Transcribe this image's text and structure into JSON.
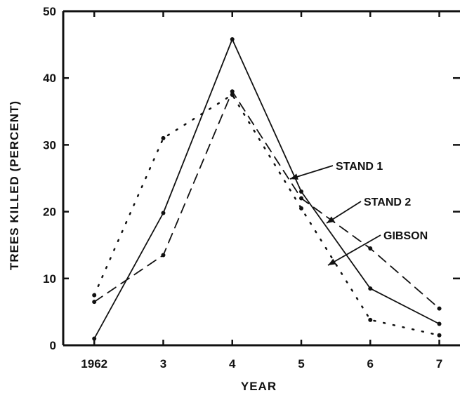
{
  "chart_data": {
    "type": "line",
    "xlabel": "YEAR",
    "ylabel": "TREES KILLED (PERCENT)",
    "x": [
      1962,
      1963,
      1964,
      1965,
      1966,
      1967
    ],
    "x_tick_labels": [
      "1962",
      "3",
      "4",
      "5",
      "6",
      "7"
    ],
    "y_ticks": [
      0,
      10,
      20,
      30,
      40,
      50
    ],
    "xlim": [
      1961.55,
      1967.3
    ],
    "ylim": [
      0,
      50
    ],
    "grid": false,
    "series": [
      {
        "name": "STAND 1",
        "style": "solid",
        "values": [
          1.0,
          19.8,
          45.8,
          23.0,
          8.5,
          3.2
        ]
      },
      {
        "name": "STAND 2",
        "style": "dashed",
        "values": [
          6.5,
          13.5,
          38.0,
          22.0,
          14.5,
          5.5
        ]
      },
      {
        "name": "GIBSON",
        "style": "dotted",
        "values": [
          7.5,
          31.0,
          37.5,
          20.5,
          3.8,
          1.5
        ]
      }
    ]
  }
}
